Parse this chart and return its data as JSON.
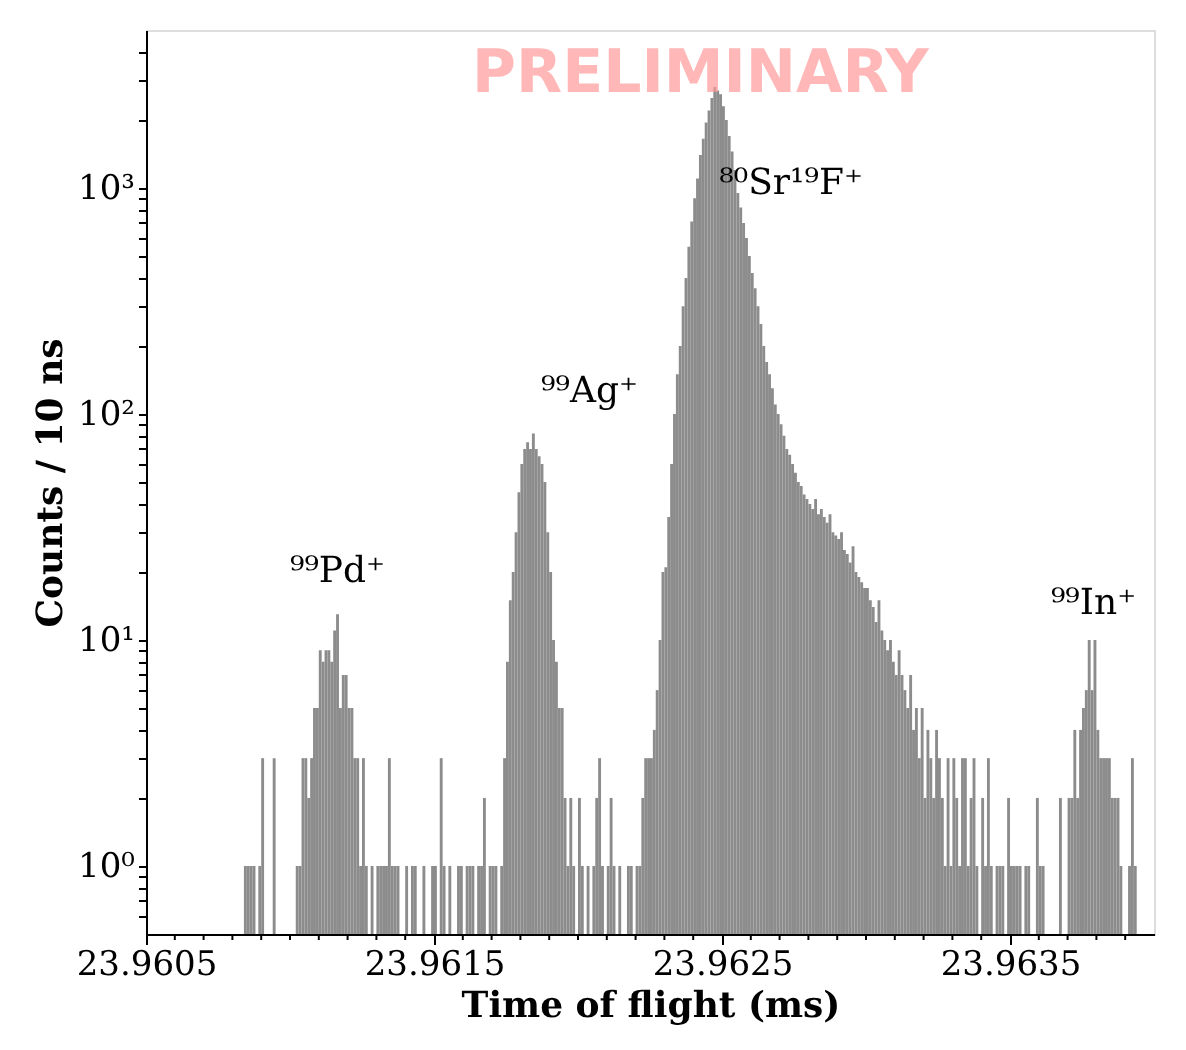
{
  "chart_data": {
    "type": "histogram",
    "xlabel": "Time of flight (ms)",
    "ylabel": "Counts / 10 ns",
    "color": "#8c8c8c",
    "log": true,
    "grid": false,
    "xlim": [
      23.9605,
      23.964
    ],
    "ylim": [
      0.5,
      5000
    ],
    "xticks": [
      23.9605,
      {
        "value": 23.9606,
        "label": null
      },
      {
        "value": 23.9607,
        "label": null
      },
      {
        "value": 23.9608,
        "label": null
      },
      {
        "value": 23.9609,
        "label": null
      },
      {
        "value": 23.961,
        "label": null
      },
      {
        "value": 23.9611,
        "label": null
      },
      {
        "value": 23.9612,
        "label": null
      },
      {
        "value": 23.9613,
        "label": null
      },
      {
        "value": 23.9614,
        "label": null
      },
      23.9615,
      {
        "value": 23.9616,
        "label": null
      },
      {
        "value": 23.9617,
        "label": null
      },
      {
        "value": 23.9618,
        "label": null
      },
      {
        "value": 23.9619,
        "label": null
      },
      {
        "value": 23.962,
        "label": null
      },
      {
        "value": 23.9621,
        "label": null
      },
      {
        "value": 23.9622,
        "label": null
      },
      {
        "value": 23.9623,
        "label": null
      },
      {
        "value": 23.9624,
        "label": null
      },
      23.9625,
      {
        "value": 23.9626,
        "label": null
      },
      {
        "value": 23.9627,
        "label": null
      },
      {
        "value": 23.9628,
        "label": null
      },
      {
        "value": 23.9629,
        "label": null
      },
      {
        "value": 23.963,
        "label": null
      },
      {
        "value": 23.9631,
        "label": null
      },
      {
        "value": 23.9632,
        "label": null
      },
      {
        "value": 23.9633,
        "label": null
      },
      {
        "value": 23.9634,
        "label": null
      },
      23.9635,
      {
        "value": 23.9636,
        "label": null
      },
      {
        "value": 23.9637,
        "label": null
      },
      {
        "value": 23.9638,
        "label": null
      },
      {
        "value": 23.9639,
        "label": null
      }
    ],
    "yticks": [
      {
        "value": 0.6,
        "label": null
      },
      {
        "value": 0.7,
        "label": null
      },
      {
        "value": 0.8,
        "label": null
      },
      {
        "value": 0.9,
        "label": null
      },
      {
        "value": 1,
        "label": "10⁰"
      },
      {
        "value": 2,
        "label": null
      },
      {
        "value": 3,
        "label": null
      },
      {
        "value": 4,
        "label": null
      },
      {
        "value": 5,
        "label": null
      },
      {
        "value": 6,
        "label": null
      },
      {
        "value": 7,
        "label": null
      },
      {
        "value": 8,
        "label": null
      },
      {
        "value": 9,
        "label": null
      },
      {
        "value": 10,
        "label": "10¹"
      },
      {
        "value": 20,
        "label": null
      },
      {
        "value": 30,
        "label": null
      },
      {
        "value": 40,
        "label": null
      },
      {
        "value": 50,
        "label": null
      },
      {
        "value": 60,
        "label": null
      },
      {
        "value": 70,
        "label": null
      },
      {
        "value": 80,
        "label": null
      },
      {
        "value": 90,
        "label": null
      },
      {
        "value": 100,
        "label": "10²"
      },
      {
        "value": 200,
        "label": null
      },
      {
        "value": 300,
        "label": null
      },
      {
        "value": 400,
        "label": null
      },
      {
        "value": 500,
        "label": null
      },
      {
        "value": 600,
        "label": null
      },
      {
        "value": 700,
        "label": null
      },
      {
        "value": 800,
        "label": null
      },
      {
        "value": 900,
        "label": null
      },
      {
        "value": 1000,
        "label": "10³"
      },
      {
        "value": 2000,
        "label": null
      },
      {
        "value": 3000,
        "label": null
      },
      {
        "value": 4000,
        "label": null
      }
    ],
    "annotations": [
      "PRELIMINARY",
      "⁹⁹Pd⁺",
      "⁹⁹Ag⁺",
      "⁸⁰Sr¹⁹F⁺",
      "⁹⁹In⁺"
    ],
    "bins": [
      23.9608,
      23.96081,
      23.96082,
      23.96083,
      23.96084,
      23.96085,
      23.96086,
      23.96087,
      23.96088,
      23.96089,
      23.9609,
      23.96091,
      23.96092,
      23.96093,
      23.96094,
      23.96095,
      23.96096,
      23.96097,
      23.96098,
      23.96099,
      23.961,
      23.96101,
      23.96102,
      23.96103,
      23.96104,
      23.96105,
      23.96106,
      23.96107,
      23.96108,
      23.96109,
      23.9611,
      23.96111,
      23.96112,
      23.96113,
      23.96114,
      23.96115,
      23.96116,
      23.96117,
      23.96118,
      23.96119,
      23.9612,
      23.96121,
      23.96122,
      23.96123,
      23.96124,
      23.96125,
      23.96126,
      23.96127,
      23.96128,
      23.96129,
      23.9613,
      23.96131,
      23.96132,
      23.96133,
      23.96134,
      23.96135,
      23.96136,
      23.96137,
      23.96138,
      23.96139,
      23.9614,
      23.96141,
      23.96142,
      23.96143,
      23.96144,
      23.96145,
      23.96146,
      23.96147,
      23.96148,
      23.96149,
      23.9615,
      23.96151,
      23.96152,
      23.96153,
      23.96154,
      23.96155,
      23.96156,
      23.96157,
      23.96158,
      23.96159,
      23.9616,
      23.96161,
      23.96162,
      23.96163,
      23.96164,
      23.96165,
      23.96166,
      23.96167,
      23.96168,
      23.96169,
      23.9617,
      23.96171,
      23.96172,
      23.96173,
      23.96174,
      23.96175,
      23.96176,
      23.96177,
      23.96178,
      23.96179,
      23.9618,
      23.96181,
      23.96182,
      23.96183,
      23.96184,
      23.96185,
      23.96186,
      23.96187,
      23.96188,
      23.96189,
      23.9619,
      23.96191,
      23.96192,
      23.96193,
      23.96194,
      23.96195,
      23.96196,
      23.96197,
      23.96198,
      23.96199,
      23.962,
      23.96201,
      23.96202,
      23.96203,
      23.96204,
      23.96205,
      23.96206,
      23.96207,
      23.96208,
      23.96209,
      23.9621,
      23.96211,
      23.96212,
      23.96213,
      23.96214,
      23.96215,
      23.96216,
      23.96217,
      23.96218,
      23.96219,
      23.9622,
      23.96221,
      23.96222,
      23.96223,
      23.96224,
      23.96225,
      23.96226,
      23.96227,
      23.96228,
      23.96229,
      23.9623,
      23.96231,
      23.96232,
      23.96233,
      23.96234,
      23.96235,
      23.96236,
      23.96237,
      23.96238,
      23.96239,
      23.9624,
      23.96241,
      23.96242,
      23.96243,
      23.96244,
      23.96245,
      23.96246,
      23.96247,
      23.96248,
      23.96249,
      23.9625,
      23.96251,
      23.96252,
      23.96253,
      23.96254,
      23.96255,
      23.96256,
      23.96257,
      23.96258,
      23.96259,
      23.9626,
      23.96261,
      23.96262,
      23.96263,
      23.96264,
      23.96265,
      23.96266,
      23.96267,
      23.96268,
      23.96269,
      23.9627,
      23.96271,
      23.96272,
      23.96273,
      23.96274,
      23.96275,
      23.96276,
      23.96277,
      23.96278,
      23.96279,
      23.9628,
      23.96281,
      23.96282,
      23.96283,
      23.96284,
      23.96285,
      23.96286,
      23.96287,
      23.96288,
      23.96289,
      23.9629,
      23.96291,
      23.96292,
      23.96293,
      23.96294,
      23.96295,
      23.96296,
      23.96297,
      23.96298,
      23.96299,
      23.963,
      23.96301,
      23.96302,
      23.96303,
      23.96304,
      23.96305,
      23.96306,
      23.96307,
      23.96308,
      23.96309,
      23.9631,
      23.96311,
      23.96312,
      23.96313,
      23.96314,
      23.96315,
      23.96316,
      23.96317,
      23.96318,
      23.96319,
      23.9632,
      23.96321,
      23.96322,
      23.96323,
      23.96324,
      23.96325,
      23.96326,
      23.96327,
      23.96328,
      23.96329,
      23.9633,
      23.96331,
      23.96332,
      23.96333,
      23.96334,
      23.96335,
      23.96336,
      23.96337,
      23.96338,
      23.96339,
      23.9634,
      23.96341,
      23.96342,
      23.96343,
      23.96344,
      23.96345,
      23.96346,
      23.96347,
      23.96348,
      23.96349,
      23.9635,
      23.96351,
      23.96352,
      23.96353,
      23.96354,
      23.96355,
      23.96356,
      23.96357,
      23.96358,
      23.96359,
      23.9636,
      23.96361,
      23.96362,
      23.96363,
      23.96364,
      23.96365,
      23.96366,
      23.96367,
      23.96368,
      23.96369,
      23.9637,
      23.96371,
      23.96372,
      23.96373,
      23.96374,
      23.96375,
      23.96376,
      23.96377,
      23.96378,
      23.96379,
      23.9638,
      23.96381,
      23.96382,
      23.96383,
      23.96384,
      23.96385,
      23.96386,
      23.96387,
      23.96388,
      23.96389,
      23.9639,
      23.96391,
      23.96392,
      23.96393,
      23.96394,
      23.96395,
      23.96396,
      23.96397,
      23.96398,
      23.96399,
      23.964
    ],
    "values": [
      null,
      null,
      null,
      null,
      1,
      1,
      1,
      1,
      null,
      1,
      3,
      null,
      null,
      null,
      3,
      null,
      null,
      null,
      null,
      null,
      null,
      null,
      1,
      1,
      3,
      3,
      2,
      3,
      5,
      5,
      9,
      8,
      9,
      9,
      8,
      11,
      13,
      5,
      7,
      7,
      5,
      5,
      3,
      3,
      1,
      3,
      1,
      null,
      1,
      null,
      1,
      1,
      1,
      1,
      3,
      1,
      1,
      1,
      null,
      null,
      1,
      null,
      1,
      1,
      null,
      null,
      1,
      null,
      null,
      1,
      1,
      null,
      3,
      1,
      null,
      1,
      null,
      null,
      1,
      1,
      null,
      1,
      1,
      1,
      null,
      1,
      1,
      2,
      null,
      1,
      1,
      1,
      null,
      1,
      3,
      8,
      15,
      20,
      30,
      45,
      60,
      70,
      75,
      70,
      82,
      70,
      65,
      60,
      50,
      30,
      20,
      10,
      8,
      5,
      5,
      2,
      1,
      2,
      1,
      null,
      2,
      1,
      null,
      1,
      null,
      1,
      2,
      3,
      1,
      null,
      1,
      2,
      1,
      null,
      1,
      null,
      null,
      1,
      1,
      null,
      1,
      1,
      2,
      3,
      3,
      3,
      4,
      6,
      10,
      20,
      21,
      35,
      60,
      100,
      150,
      200,
      300,
      400,
      550,
      710,
      900,
      1100,
      1400,
      1650,
      1950,
      2200,
      2500,
      2800,
      2700,
      2600,
      2300,
      2000,
      1700,
      1450,
      1200,
      950,
      820,
      700,
      600,
      500,
      420,
      360,
      300,
      250,
      200,
      170,
      150,
      130,
      110,
      100,
      90,
      80,
      70,
      66,
      60,
      55,
      50,
      48,
      44,
      42,
      40,
      38,
      42,
      36,
      38,
      35,
      33,
      36,
      30,
      29,
      28,
      30,
      25,
      24,
      22,
      26,
      20,
      19,
      18,
      17,
      17,
      15,
      14,
      12,
      15,
      11,
      10,
      9,
      10,
      8,
      7,
      9,
      7,
      6,
      5,
      7,
      4,
      5,
      3,
      5,
      2,
      4,
      3,
      2,
      4,
      3,
      2,
      1,
      3,
      1,
      3,
      2,
      1,
      3,
      3,
      1,
      2,
      3,
      1,
      null,
      2,
      1,
      3,
      1,
      null,
      1,
      1,
      1,
      null,
      2,
      1,
      1,
      1,
      1,
      null,
      1,
      1,
      null,
      null,
      2,
      1,
      1,
      null,
      null,
      null,
      null,
      null,
      2,
      null,
      null,
      2,
      2,
      4,
      2,
      4,
      5,
      6,
      10,
      6,
      10,
      4,
      3,
      3,
      3,
      3,
      2,
      2,
      2,
      1,
      null,
      null,
      1,
      3,
      1,
      null,
      null,
      null,
      null,
      null,
      null
    ]
  }
}
